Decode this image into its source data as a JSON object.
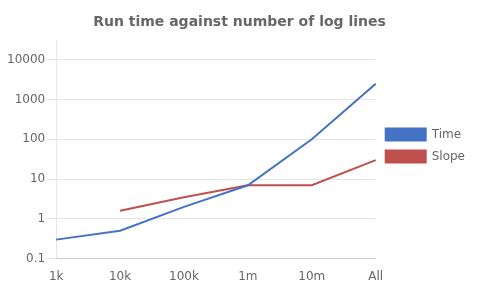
{
  "chart_data": {
    "type": "line",
    "title": "Run time against number of log lines",
    "categories": [
      "1k",
      "10k",
      "100k",
      "1m",
      "10m",
      "All"
    ],
    "series": [
      {
        "name": "Time",
        "color": "#4472C4",
        "values": [
          0.3,
          0.5,
          2.0,
          7.0,
          100.0,
          2500.0
        ]
      },
      {
        "name": "Slope",
        "color": "#C0504D",
        "values": [
          null,
          1.6,
          3.5,
          7.0,
          7.0,
          30.0
        ]
      }
    ],
    "log": "y",
    "ylim": [
      0.1,
      30000
    ],
    "yticks": [
      0.1,
      1,
      10,
      100,
      1000,
      10000
    ],
    "grid": "y",
    "legend": "right"
  }
}
